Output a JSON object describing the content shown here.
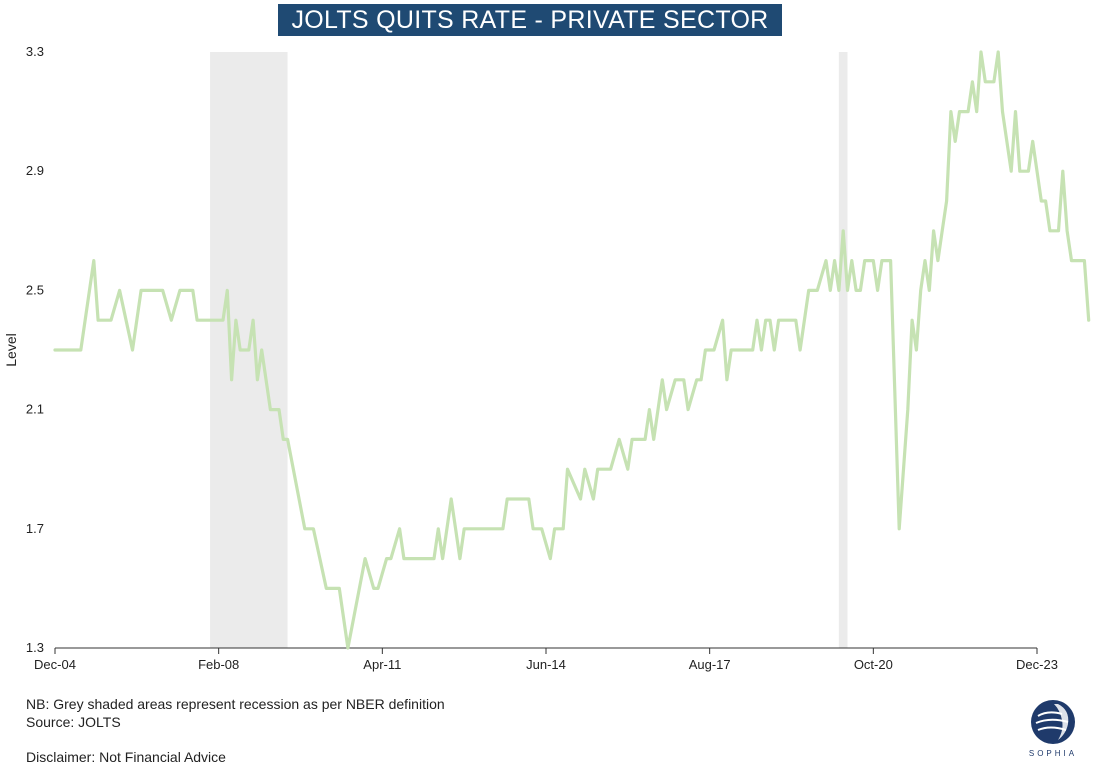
{
  "title": "JOLTS QUITS RATE - PRIVATE SECTOR",
  "notes": {
    "nb": "NB: Grey shaded areas represent recession as per NBER definition",
    "source": "Source: JOLTS",
    "disclaimer": "Disclaimer: Not Financial Advice"
  },
  "logo": {
    "text": "SOPHIA",
    "color": "#1f3a6b"
  },
  "colors": {
    "line": "#c6e2b3",
    "recession": "#ebebeb",
    "title_bg": "#1f4a73",
    "title_fg": "#ffffff"
  },
  "chart_data": {
    "type": "line",
    "title": "JOLTS QUITS RATE - PRIVATE SECTOR",
    "xlabel": "",
    "ylabel": "Level",
    "ylim": [
      1.3,
      3.3
    ],
    "yticks": [
      "1.3",
      "1.7",
      "2.1",
      "2.5",
      "2.9",
      "3.3"
    ],
    "xticks": [
      "Dec-04",
      "Feb-08",
      "Apr-11",
      "Jun-14",
      "Aug-17",
      "Oct-20",
      "Dec-23"
    ],
    "x_range": [
      "2004-12",
      "2023-12"
    ],
    "grid": false,
    "recessions": [
      [
        "2007-12",
        "2009-06"
      ],
      [
        "2020-02",
        "2020-04"
      ]
    ],
    "series": [
      {
        "color": "#c6e2b3",
        "points": [
          [
            "2004-12",
            2.3
          ],
          [
            "2005-06",
            2.3
          ],
          [
            "2005-09",
            2.6
          ],
          [
            "2005-10",
            2.4
          ],
          [
            "2006-01",
            2.4
          ],
          [
            "2006-03",
            2.5
          ],
          [
            "2006-06",
            2.3
          ],
          [
            "2006-08",
            2.5
          ],
          [
            "2007-01",
            2.5
          ],
          [
            "2007-03",
            2.4
          ],
          [
            "2007-05",
            2.5
          ],
          [
            "2007-08",
            2.5
          ],
          [
            "2007-09",
            2.4
          ],
          [
            "2008-03",
            2.4
          ],
          [
            "2008-04",
            2.5
          ],
          [
            "2008-05",
            2.2
          ],
          [
            "2008-06",
            2.4
          ],
          [
            "2008-07",
            2.3
          ],
          [
            "2008-09",
            2.3
          ],
          [
            "2008-10",
            2.4
          ],
          [
            "2008-11",
            2.2
          ],
          [
            "2008-12",
            2.3
          ],
          [
            "2009-02",
            2.1
          ],
          [
            "2009-04",
            2.1
          ],
          [
            "2009-05",
            2.0
          ],
          [
            "2009-06",
            2.0
          ],
          [
            "2009-10",
            1.7
          ],
          [
            "2009-12",
            1.7
          ],
          [
            "2010-03",
            1.5
          ],
          [
            "2010-06",
            1.5
          ],
          [
            "2010-08",
            1.3
          ],
          [
            "2010-12",
            1.6
          ],
          [
            "2011-02",
            1.5
          ],
          [
            "2011-03",
            1.5
          ],
          [
            "2011-05",
            1.6
          ],
          [
            "2011-06",
            1.6
          ],
          [
            "2011-08",
            1.7
          ],
          [
            "2011-09",
            1.6
          ],
          [
            "2012-04",
            1.6
          ],
          [
            "2012-05",
            1.7
          ],
          [
            "2012-06",
            1.6
          ],
          [
            "2012-08",
            1.8
          ],
          [
            "2012-09",
            1.7
          ],
          [
            "2012-10",
            1.6
          ],
          [
            "2012-11",
            1.7
          ],
          [
            "2013-08",
            1.7
          ],
          [
            "2013-09",
            1.8
          ],
          [
            "2014-02",
            1.8
          ],
          [
            "2014-03",
            1.7
          ],
          [
            "2014-05",
            1.7
          ],
          [
            "2014-07",
            1.6
          ],
          [
            "2014-08",
            1.7
          ],
          [
            "2014-10",
            1.7
          ],
          [
            "2014-11",
            1.9
          ],
          [
            "2015-02",
            1.8
          ],
          [
            "2015-03",
            1.9
          ],
          [
            "2015-05",
            1.8
          ],
          [
            "2015-06",
            1.9
          ],
          [
            "2015-09",
            1.9
          ],
          [
            "2015-11",
            2.0
          ],
          [
            "2016-01",
            1.9
          ],
          [
            "2016-02",
            2.0
          ],
          [
            "2016-05",
            2.0
          ],
          [
            "2016-06",
            2.1
          ],
          [
            "2016-07",
            2.0
          ],
          [
            "2016-09",
            2.2
          ],
          [
            "2016-10",
            2.1
          ],
          [
            "2016-12",
            2.2
          ],
          [
            "2017-02",
            2.2
          ],
          [
            "2017-03",
            2.1
          ],
          [
            "2017-05",
            2.2
          ],
          [
            "2017-06",
            2.2
          ],
          [
            "2017-07",
            2.3
          ],
          [
            "2017-09",
            2.3
          ],
          [
            "2017-11",
            2.4
          ],
          [
            "2017-12",
            2.2
          ],
          [
            "2018-01",
            2.3
          ],
          [
            "2018-03",
            2.3
          ],
          [
            "2018-04",
            2.3
          ],
          [
            "2018-06",
            2.3
          ],
          [
            "2018-07",
            2.4
          ],
          [
            "2018-08",
            2.3
          ],
          [
            "2018-09",
            2.4
          ],
          [
            "2018-10",
            2.4
          ],
          [
            "2018-11",
            2.3
          ],
          [
            "2018-12",
            2.4
          ],
          [
            "2019-02",
            2.4
          ],
          [
            "2019-04",
            2.4
          ],
          [
            "2019-05",
            2.3
          ],
          [
            "2019-07",
            2.5
          ],
          [
            "2019-09",
            2.5
          ],
          [
            "2019-11",
            2.6
          ],
          [
            "2019-12",
            2.5
          ],
          [
            "2020-01",
            2.6
          ],
          [
            "2020-02",
            2.5
          ],
          [
            "2020-03",
            2.7
          ],
          [
            "2020-04",
            2.5
          ],
          [
            "2020-05",
            2.6
          ],
          [
            "2020-06",
            2.5
          ],
          [
            "2020-07",
            2.5
          ],
          [
            "2020-08",
            2.6
          ],
          [
            "2020-10",
            2.6
          ],
          [
            "2020-11",
            2.5
          ],
          [
            "2020-12",
            2.6
          ],
          [
            "2021-02",
            2.6
          ],
          [
            "2021-04",
            1.7
          ],
          [
            "2021-06",
            2.1
          ],
          [
            "2021-07",
            2.4
          ],
          [
            "2021-08",
            2.3
          ],
          [
            "2021-09",
            2.5
          ],
          [
            "2021-10",
            2.6
          ],
          [
            "2021-11",
            2.5
          ],
          [
            "2021-12",
            2.7
          ],
          [
            "2022-01",
            2.6
          ],
          [
            "2022-02",
            2.7
          ],
          [
            "2022-03",
            2.8
          ],
          [
            "2022-04",
            3.1
          ],
          [
            "2022-05",
            3.0
          ],
          [
            "2022-06",
            3.1
          ],
          [
            "2022-08",
            3.1
          ],
          [
            "2022-09",
            3.2
          ],
          [
            "2022-10",
            3.1
          ],
          [
            "2022-11",
            3.3
          ],
          [
            "2022-12",
            3.2
          ],
          [
            "2023-02",
            3.2
          ],
          [
            "2023-03",
            3.3
          ],
          [
            "2023-04",
            3.1
          ],
          [
            "2023-06",
            2.9
          ],
          [
            "2023-07",
            3.1
          ],
          [
            "2023-08",
            2.9
          ],
          [
            "2023-10",
            2.9
          ],
          [
            "2023-11",
            3.0
          ],
          [
            "2023-12",
            2.9
          ],
          [
            "2024-01",
            2.8
          ],
          [
            "2024-02",
            2.8
          ],
          [
            "2024-03",
            2.7
          ],
          [
            "2024-05",
            2.7
          ],
          [
            "2024-06",
            2.9
          ],
          [
            "2024-07",
            2.7
          ],
          [
            "2024-08",
            2.6
          ],
          [
            "2024-11",
            2.6
          ],
          [
            "2024-12",
            2.4
          ]
        ]
      }
    ]
  }
}
